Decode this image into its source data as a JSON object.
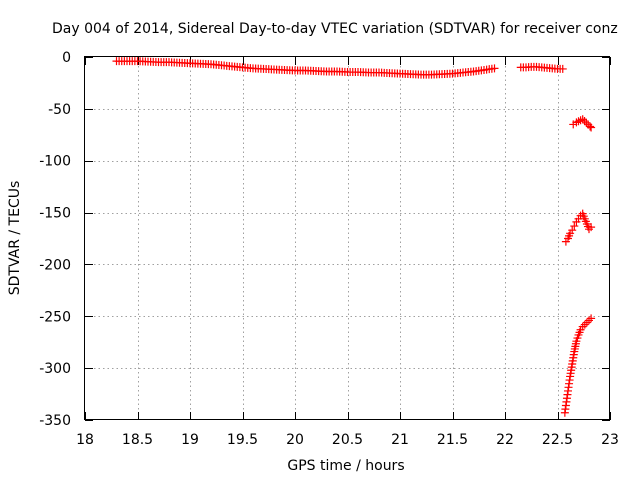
{
  "chart_data": {
    "type": "scatter",
    "title": "Day 004 of 2014, Sidereal Day-to-day VTEC variation (SDTVAR) for receiver conz",
    "xlabel": "GPS time / hours",
    "ylabel": "SDTVAR / TECUs",
    "xlim": [
      18,
      23
    ],
    "ylim": [
      -350,
      0
    ],
    "x_ticks": [
      18,
      18.5,
      19,
      19.5,
      20,
      20.5,
      21,
      21.5,
      22,
      22.5,
      23
    ],
    "y_ticks": [
      0,
      -50,
      -100,
      -150,
      -200,
      -250,
      -300,
      -350
    ],
    "x_tick_labels": [
      "18",
      "18.5",
      "19",
      "19.5",
      "20",
      "20.5",
      "21",
      "21.5",
      "22",
      "22.5",
      "23"
    ],
    "y_tick_labels": [
      "0",
      "-50",
      "-100",
      "-150",
      "-200",
      "-250",
      "-300",
      "-350"
    ],
    "grid": true,
    "marker": "+",
    "color": "#ff0000",
    "series": [
      {
        "points": [
          [
            18.3,
            -4
          ],
          [
            18.4,
            -4
          ],
          [
            18.5,
            -4
          ],
          [
            18.6,
            -4.5
          ],
          [
            18.7,
            -5
          ],
          [
            18.8,
            -5
          ],
          [
            18.9,
            -5.5
          ],
          [
            19.0,
            -6
          ],
          [
            19.1,
            -6.5
          ],
          [
            19.2,
            -7
          ],
          [
            19.3,
            -8
          ],
          [
            19.4,
            -9
          ],
          [
            19.5,
            -10
          ],
          [
            19.6,
            -11
          ],
          [
            19.7,
            -11.5
          ],
          [
            19.8,
            -12
          ],
          [
            19.9,
            -12.5
          ],
          [
            20.0,
            -13
          ],
          [
            20.1,
            -13
          ],
          [
            20.2,
            -13.5
          ],
          [
            20.3,
            -14
          ],
          [
            20.4,
            -14
          ],
          [
            20.5,
            -14.5
          ],
          [
            20.6,
            -14.5
          ],
          [
            20.7,
            -15
          ],
          [
            20.8,
            -15
          ],
          [
            20.9,
            -15.5
          ],
          [
            21.0,
            -16
          ],
          [
            21.1,
            -16.5
          ],
          [
            21.2,
            -17
          ],
          [
            21.3,
            -17
          ],
          [
            21.4,
            -16.5
          ],
          [
            21.5,
            -16
          ],
          [
            21.6,
            -15
          ],
          [
            21.7,
            -14
          ],
          [
            21.8,
            -12.5
          ],
          [
            21.9,
            -11
          ]
        ]
      },
      {
        "points": [
          [
            22.15,
            -10
          ],
          [
            22.2,
            -10
          ],
          [
            22.25,
            -9.5
          ],
          [
            22.3,
            -9.5
          ],
          [
            22.35,
            -10
          ],
          [
            22.4,
            -10.5
          ],
          [
            22.45,
            -11
          ],
          [
            22.5,
            -11.5
          ],
          [
            22.55,
            -11.5
          ]
        ]
      },
      {
        "points": [
          [
            22.65,
            -65
          ],
          [
            22.68,
            -63
          ],
          [
            22.7,
            -62
          ],
          [
            22.72,
            -61
          ],
          [
            22.74,
            -60
          ],
          [
            22.81,
            -67
          ],
          [
            22.82,
            -68
          ]
        ]
      },
      {
        "points": [
          [
            22.58,
            -178
          ],
          [
            22.6,
            -175
          ],
          [
            22.62,
            -170
          ],
          [
            22.64,
            -167
          ],
          [
            22.66,
            -163
          ],
          [
            22.68,
            -159
          ],
          [
            22.7,
            -156
          ],
          [
            22.72,
            -153
          ],
          [
            22.74,
            -151
          ],
          [
            22.8,
            -166
          ],
          [
            22.82,
            -164
          ]
        ]
      },
      {
        "points": [
          [
            22.57,
            -343
          ],
          [
            22.58,
            -336
          ],
          [
            22.59,
            -329
          ],
          [
            22.6,
            -322
          ],
          [
            22.61,
            -315
          ],
          [
            22.62,
            -308
          ],
          [
            22.63,
            -302
          ],
          [
            22.64,
            -296
          ],
          [
            22.65,
            -290
          ],
          [
            22.66,
            -284
          ],
          [
            22.67,
            -279
          ],
          [
            22.68,
            -274
          ],
          [
            22.7,
            -268
          ],
          [
            22.72,
            -263
          ],
          [
            22.74,
            -260
          ],
          [
            22.78,
            -256
          ],
          [
            22.82,
            -252
          ]
        ]
      }
    ]
  }
}
